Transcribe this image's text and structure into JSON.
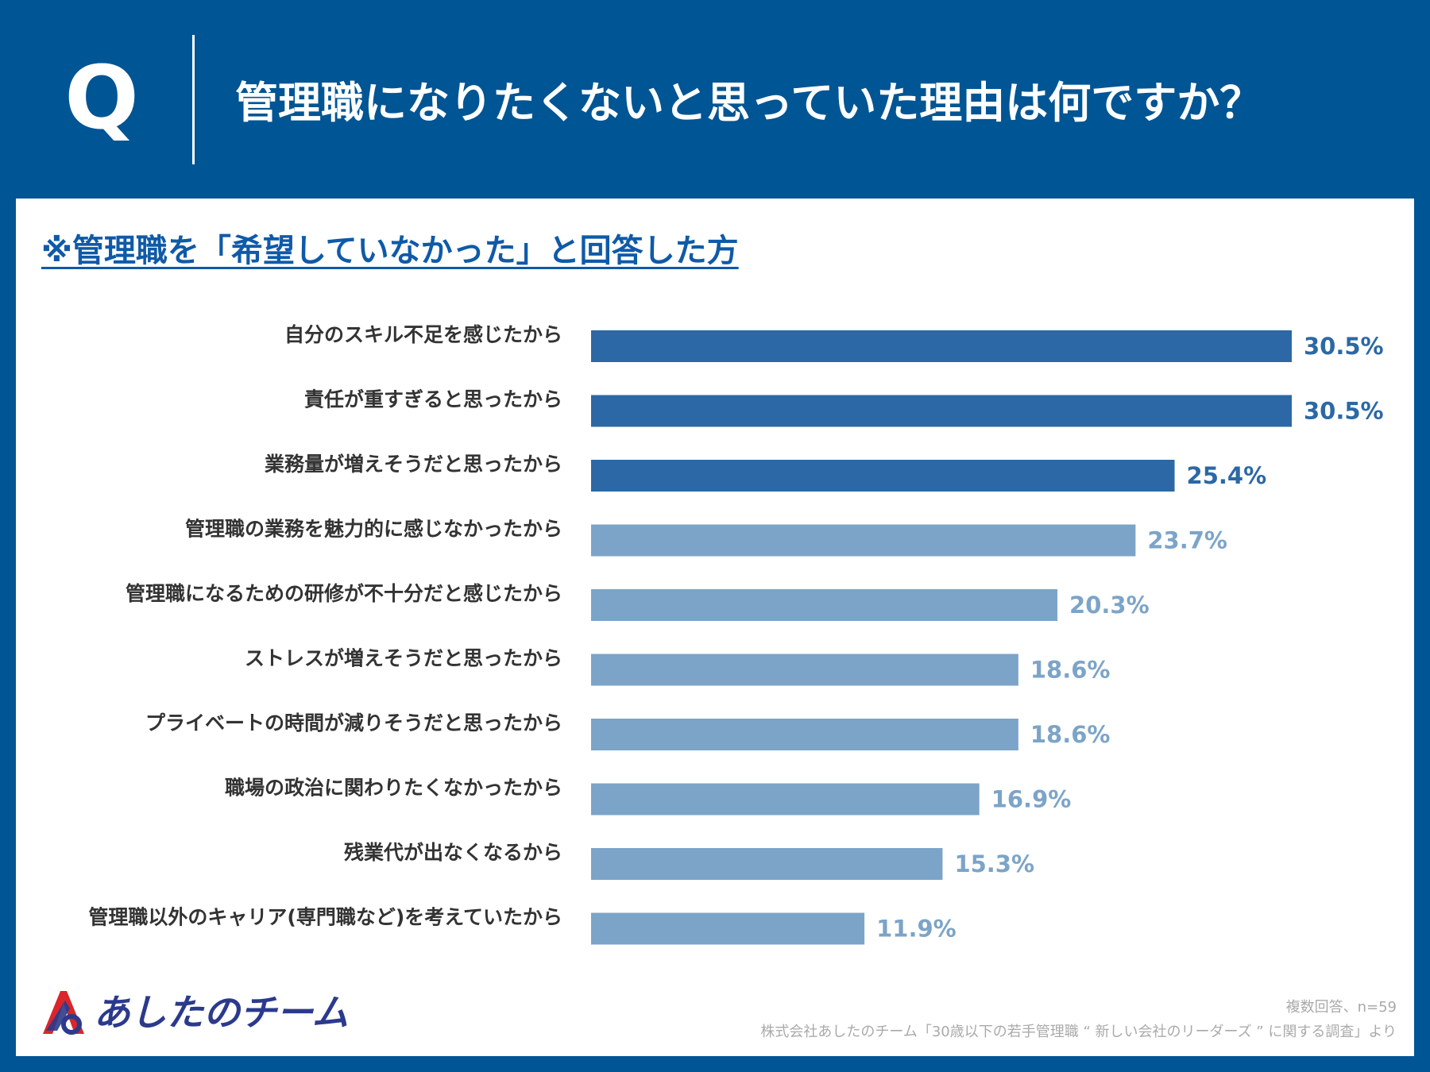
{
  "header": {
    "q_mark": "Q",
    "question": "管理職になりたくないと思っていた理由は何ですか？"
  },
  "subtitle": "※管理職を「希望していなかった」と回答した方",
  "colors": {
    "background": "#005594",
    "bar_top": "#2b68a5",
    "bar_rest": "#7ca4c8",
    "label_top": "#2b68a5",
    "label_rest": "#7ca4c8",
    "category_text": "#333333"
  },
  "chart_data": {
    "type": "bar",
    "orientation": "horizontal",
    "title": "管理職になりたくないと思っていた理由は何ですか？",
    "subtitle": "※管理職を「希望していなかった」と回答した方",
    "xlabel": "",
    "ylabel": "",
    "xlim": [
      0,
      30.5
    ],
    "grid": false,
    "unit": "%",
    "highlight_count": 3,
    "categories": [
      "自分のスキル不足を感じたから",
      "責任が重すぎると思ったから",
      "業務量が増えそうだと思ったから",
      "管理職の業務を魅力的に感じなかったから",
      "管理職になるための研修が不十分だと感じたから",
      "ストレスが増えそうだと思ったから",
      "プライベートの時間が減りそうだと思ったから",
      "職場の政治に関わりたくなかったから",
      "残業代が出なくなるから",
      "管理職以外のキャリア(専門職など)を考えていたから"
    ],
    "values": [
      30.5,
      30.5,
      25.4,
      23.7,
      20.3,
      18.6,
      18.6,
      16.9,
      15.3,
      11.9
    ],
    "value_labels": [
      "30.5%",
      "30.5%",
      "25.4%",
      "23.7%",
      "20.3%",
      "18.6%",
      "18.6%",
      "16.9%",
      "15.3%",
      "11.9%"
    ]
  },
  "footer": {
    "logo_text": "あしたのチーム",
    "logo_icon": "a-mark-icon",
    "respondents": "複数回答、n=59",
    "source": "株式会社あしたのチーム「30歳以下の若手管理職 “ 新しい会社のリーダーズ ” に関する調査」より"
  }
}
